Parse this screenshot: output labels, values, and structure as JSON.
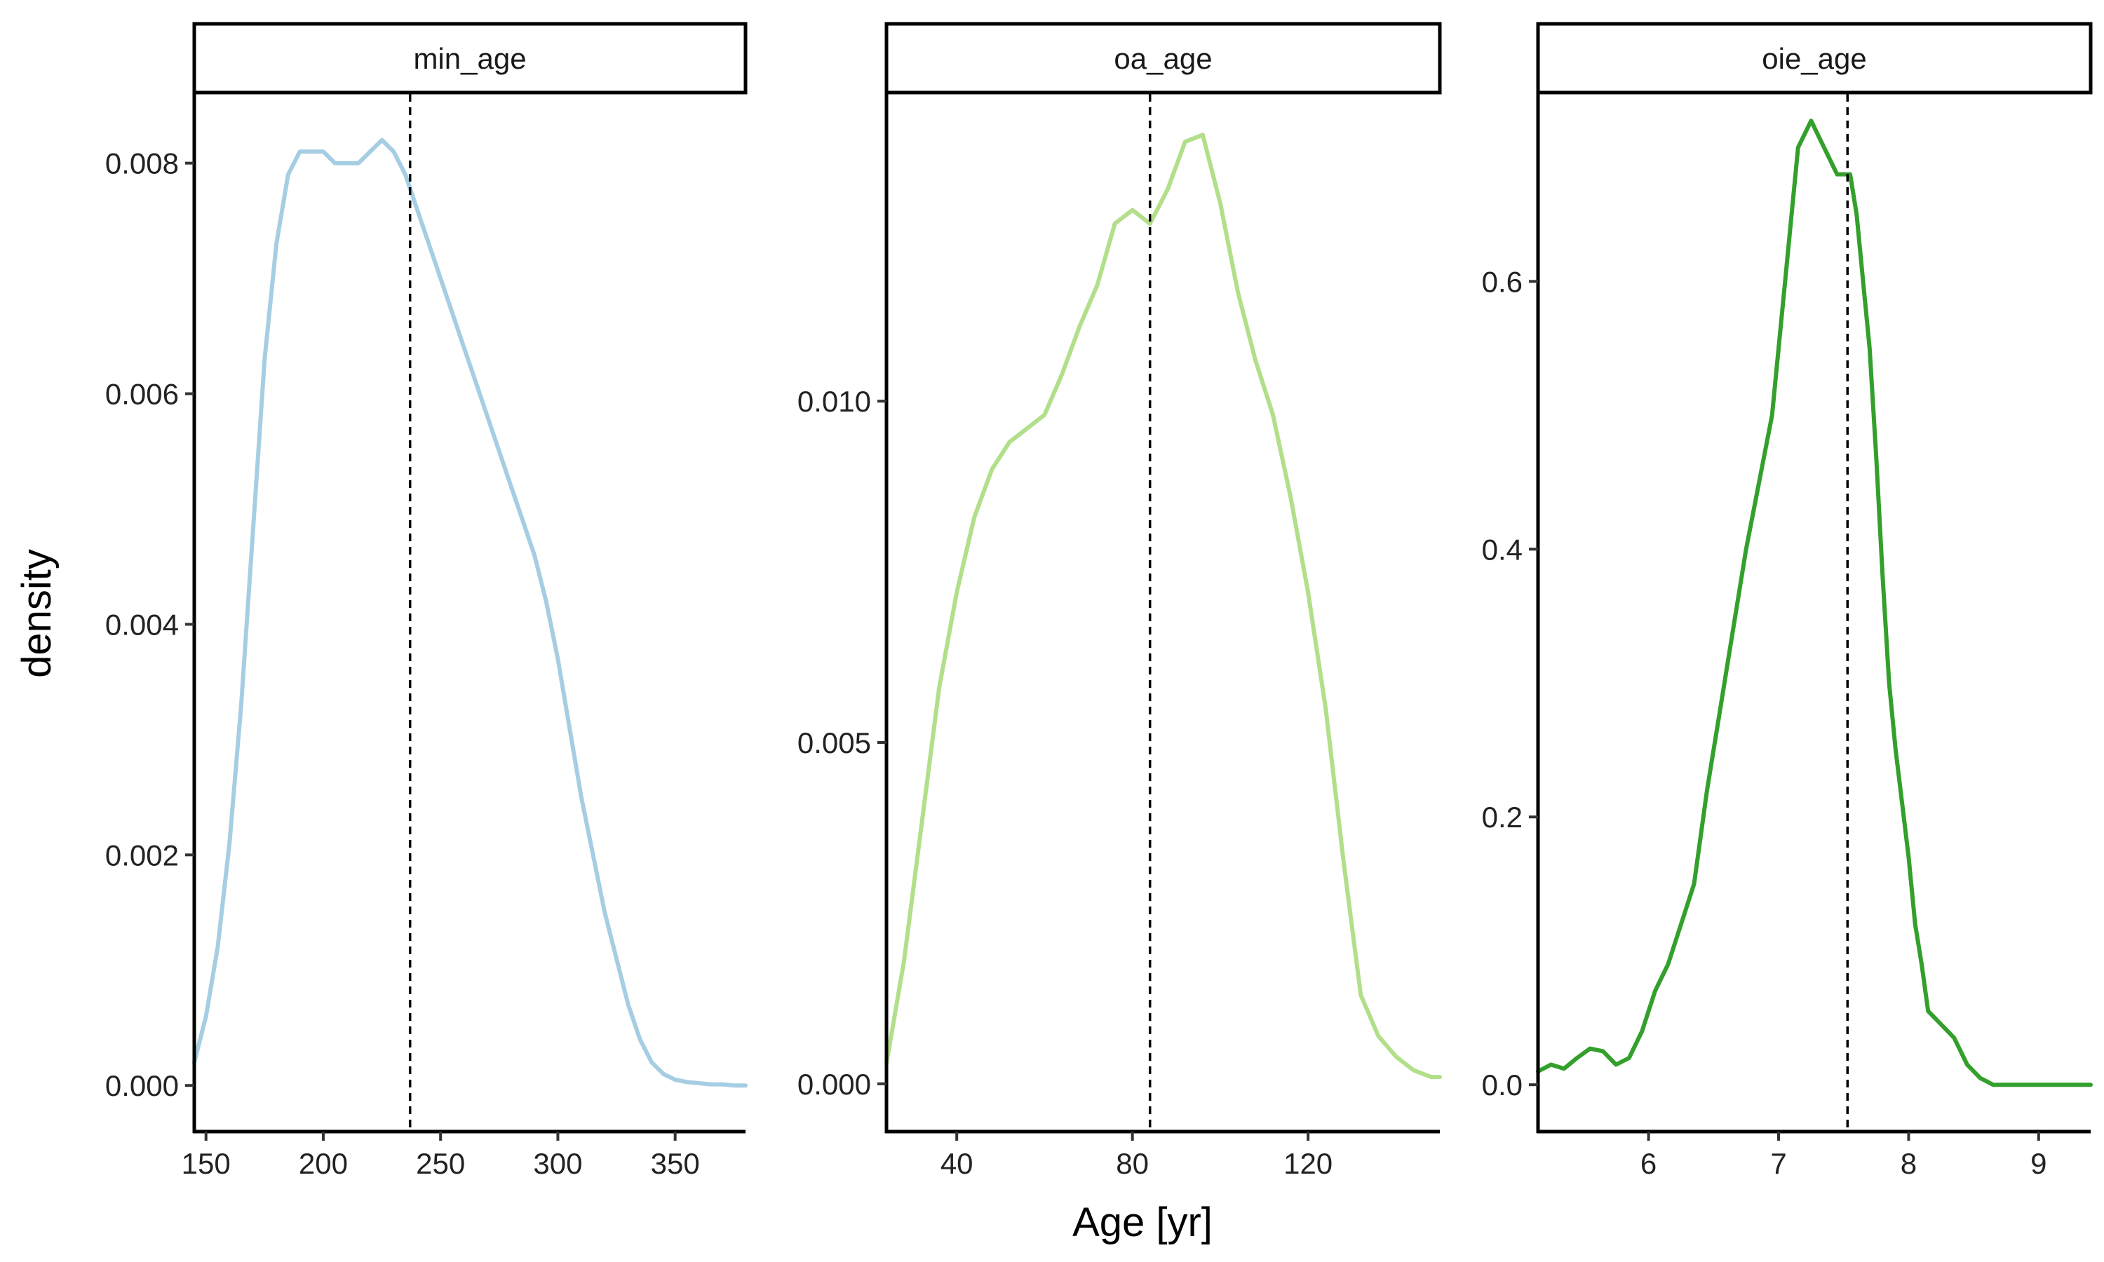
{
  "chart_data": {
    "type": "line",
    "subtype": "density",
    "xlabel": "Age [yr]",
    "ylabel": "density",
    "legend": "none",
    "grid": false,
    "facets": [
      {
        "strip": "min_age",
        "color": "#A6CEE3",
        "xlim": [
          145,
          380
        ],
        "ylim": [
          -0.0004,
          0.0086
        ],
        "xticks": [
          150,
          200,
          250,
          300,
          350
        ],
        "yticks": [
          0.0,
          0.002,
          0.004,
          0.006,
          0.008
        ],
        "ytick_labels": [
          "0.000",
          "0.002",
          "0.004",
          "0.006",
          "0.008"
        ],
        "vline": 237,
        "x": [
          145,
          150,
          155,
          160,
          165,
          170,
          175,
          180,
          185,
          190,
          195,
          200,
          205,
          210,
          215,
          220,
          225,
          230,
          235,
          240,
          245,
          250,
          255,
          260,
          265,
          270,
          275,
          280,
          285,
          290,
          295,
          300,
          305,
          310,
          315,
          320,
          325,
          330,
          335,
          340,
          345,
          350,
          355,
          360,
          365,
          370,
          375,
          380
        ],
        "y": [
          0.0002,
          0.0006,
          0.0012,
          0.0021,
          0.0033,
          0.0048,
          0.0063,
          0.0073,
          0.0079,
          0.0081,
          0.0081,
          0.0081,
          0.008,
          0.008,
          0.008,
          0.0081,
          0.0082,
          0.0081,
          0.0079,
          0.0076,
          0.0073,
          0.007,
          0.0067,
          0.0064,
          0.0061,
          0.0058,
          0.0055,
          0.0052,
          0.0049,
          0.0046,
          0.0042,
          0.0037,
          0.0031,
          0.0025,
          0.002,
          0.0015,
          0.0011,
          0.0007,
          0.0004,
          0.0002,
          0.0001,
          5e-05,
          3e-05,
          2e-05,
          1e-05,
          1e-05,
          0.0,
          0.0
        ]
      },
      {
        "strip": "oa_age",
        "color": "#B2DF8A",
        "xlim": [
          24,
          150
        ],
        "ylim": [
          -0.0007,
          0.0145
        ],
        "xticks": [
          40,
          80,
          120
        ],
        "yticks": [
          0.0,
          0.005,
          0.01
        ],
        "ytick_labels": [
          "0.000",
          "0.005",
          "0.010"
        ],
        "vline": 84,
        "x": [
          24,
          28,
          32,
          36,
          40,
          44,
          48,
          52,
          56,
          60,
          64,
          68,
          72,
          76,
          80,
          84,
          88,
          92,
          96,
          100,
          104,
          108,
          112,
          116,
          120,
          124,
          128,
          132,
          136,
          140,
          144,
          148,
          150
        ],
        "y": [
          0.0003,
          0.0018,
          0.0038,
          0.0058,
          0.0072,
          0.0083,
          0.009,
          0.0094,
          0.0096,
          0.0098,
          0.0104,
          0.0111,
          0.0117,
          0.0126,
          0.0128,
          0.0126,
          0.0131,
          0.0138,
          0.0139,
          0.0129,
          0.0116,
          0.0106,
          0.0098,
          0.0086,
          0.0072,
          0.0055,
          0.0033,
          0.0013,
          0.0007,
          0.0004,
          0.0002,
          0.0001,
          0.0001
        ]
      },
      {
        "strip": "oie_age",
        "color": "#33A02C",
        "xlim": [
          5.15,
          9.4
        ],
        "ylim": [
          -0.035,
          0.74
        ],
        "xticks": [
          6,
          7,
          8,
          9
        ],
        "yticks": [
          0.0,
          0.2,
          0.4,
          0.6
        ],
        "ytick_labels": [
          "0.0",
          "0.2",
          "0.4",
          "0.6"
        ],
        "vline": 7.53,
        "x": [
          5.15,
          5.25,
          5.35,
          5.45,
          5.55,
          5.65,
          5.75,
          5.85,
          5.95,
          6.05,
          6.15,
          6.25,
          6.35,
          6.45,
          6.55,
          6.65,
          6.75,
          6.85,
          6.95,
          7.05,
          7.15,
          7.25,
          7.35,
          7.45,
          7.5,
          7.55,
          7.6,
          7.65,
          7.7,
          7.75,
          7.8,
          7.85,
          7.9,
          7.95,
          8.0,
          8.05,
          8.1,
          8.15,
          8.25,
          8.35,
          8.45,
          8.55,
          8.65,
          8.75,
          8.85,
          8.95,
          9.05,
          9.15,
          9.25,
          9.35,
          9.4
        ],
        "y": [
          0.01,
          0.015,
          0.012,
          0.02,
          0.027,
          0.025,
          0.015,
          0.02,
          0.04,
          0.07,
          0.09,
          0.12,
          0.15,
          0.22,
          0.28,
          0.34,
          0.4,
          0.45,
          0.5,
          0.6,
          0.7,
          0.72,
          0.7,
          0.68,
          0.68,
          0.68,
          0.65,
          0.6,
          0.55,
          0.47,
          0.38,
          0.3,
          0.25,
          0.21,
          0.17,
          0.12,
          0.09,
          0.055,
          0.045,
          0.035,
          0.015,
          0.005,
          0.0,
          0.0,
          0.0,
          0.0,
          0.0,
          0.0,
          0.0,
          0.0,
          0.0
        ]
      }
    ]
  }
}
